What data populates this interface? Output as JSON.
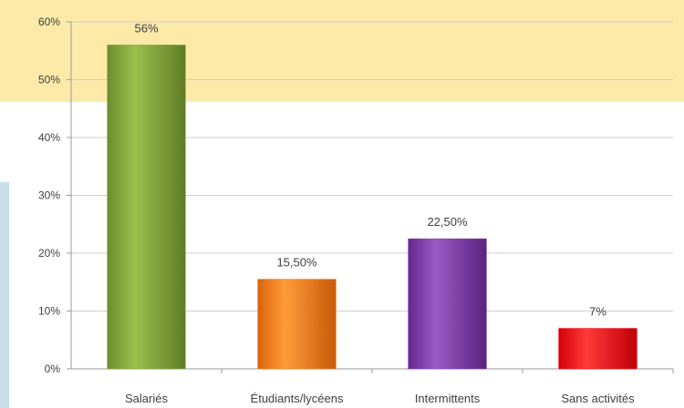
{
  "colors": {
    "background_accent_top": "#fde9a8",
    "background_accent_left": "#c6dfe9",
    "gridline": "#cfcfcf",
    "axis": "#9a9a9a",
    "text": "#404040"
  },
  "chart_data": {
    "type": "bar",
    "title": "",
    "xlabel": "",
    "ylabel": "",
    "ylim": [
      0,
      0.6
    ],
    "y_ticks": [
      0,
      0.1,
      0.2,
      0.3,
      0.4,
      0.5,
      0.6
    ],
    "y_tick_labels": [
      "0%",
      "10%",
      "20%",
      "30%",
      "40%",
      "50%",
      "60%"
    ],
    "grid": true,
    "legend": "none",
    "categories": [
      "Salariés",
      "Étudiants/lycéens",
      "Intermittents",
      "Sans activités"
    ],
    "values": [
      0.56,
      0.155,
      0.225,
      0.07
    ],
    "data_labels": [
      "56%",
      "15,50%",
      "22,50%",
      "7%"
    ],
    "bar_colors": [
      "#7fa23a",
      "#f07a12",
      "#7b3aa6",
      "#f2000c"
    ]
  }
}
